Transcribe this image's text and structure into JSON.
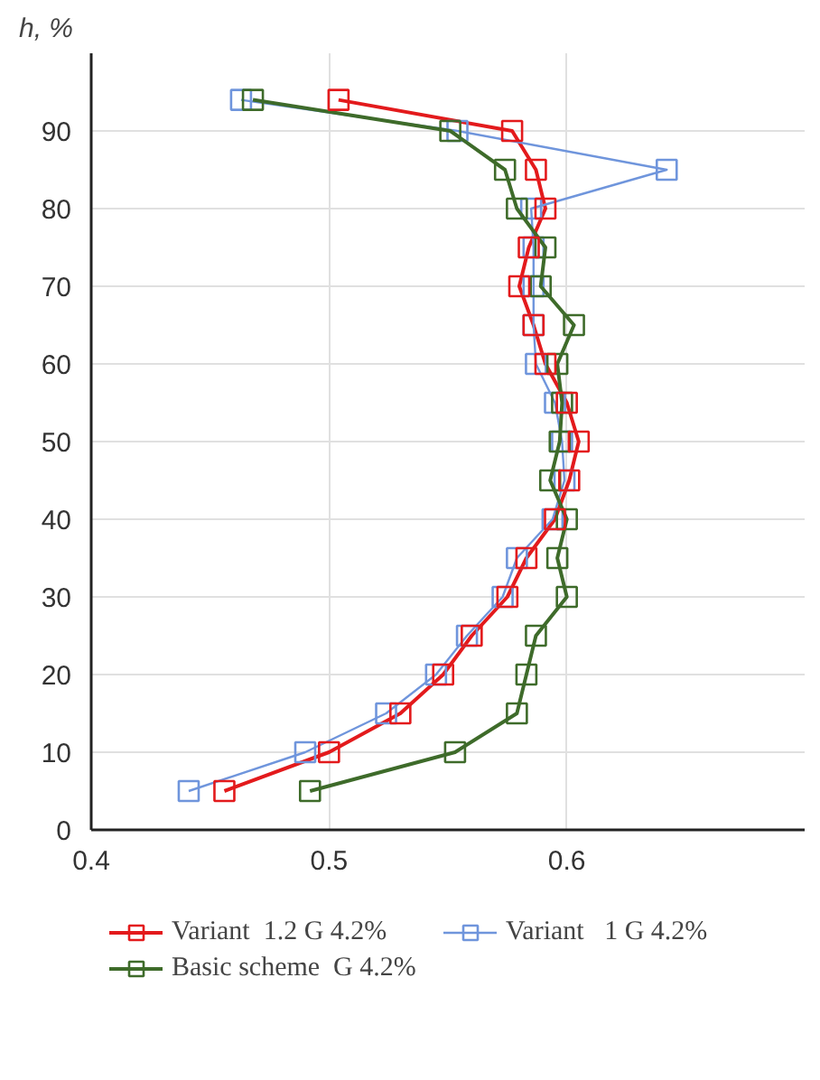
{
  "chart_data": {
    "type": "line",
    "ylabel": "h, %",
    "xlim": [
      0.4,
      0.7
    ],
    "xticks": [
      0.4,
      0.5,
      0.6
    ],
    "ylim": [
      0,
      100
    ],
    "yticks": [
      0,
      10,
      20,
      30,
      40,
      50,
      60,
      70,
      80,
      90
    ],
    "grid": true,
    "legend": "bottom",
    "marker": "square",
    "line_style": "solid",
    "series": [
      {
        "name": "Variant  1.2 G 4.2%",
        "color": "#e31a1c",
        "x": [
          0.504,
          0.577,
          0.587,
          0.591,
          0.584,
          0.58,
          0.586,
          0.591,
          0.6,
          0.605,
          0.601,
          0.595,
          0.583,
          0.575,
          0.56,
          0.548,
          0.53,
          0.5,
          0.456
        ],
        "values": [
          94,
          90,
          85,
          80,
          75,
          70,
          65,
          60,
          55,
          50,
          45,
          40,
          35,
          30,
          25,
          20,
          15,
          10,
          5
        ]
      },
      {
        "name": "Variant   1 G 4.2%",
        "color": "#6f95dc",
        "x": [
          0.463,
          0.554,
          0.642,
          0.585,
          0.586,
          0.586,
          0.586,
          0.587,
          0.595,
          0.598,
          0.599,
          0.594,
          0.579,
          0.573,
          0.558,
          0.545,
          0.524,
          0.49,
          0.441
        ],
        "values": [
          94,
          90,
          85,
          80,
          75,
          70,
          65,
          60,
          55,
          50,
          45,
          40,
          35,
          30,
          25,
          20,
          15,
          10,
          5
        ]
      },
      {
        "name": "Basic scheme  G 4.2%",
        "color": "#3e6b2a",
        "x": [
          0.468,
          0.551,
          0.574,
          0.579,
          0.591,
          0.589,
          0.603,
          0.596,
          0.598,
          0.597,
          0.593,
          0.6,
          0.596,
          0.6,
          0.587,
          0.583,
          0.579,
          0.553,
          0.492
        ],
        "values": [
          94,
          90,
          85,
          80,
          75,
          70,
          65,
          60,
          55,
          50,
          45,
          40,
          35,
          30,
          25,
          20,
          15,
          10,
          5
        ]
      }
    ]
  }
}
